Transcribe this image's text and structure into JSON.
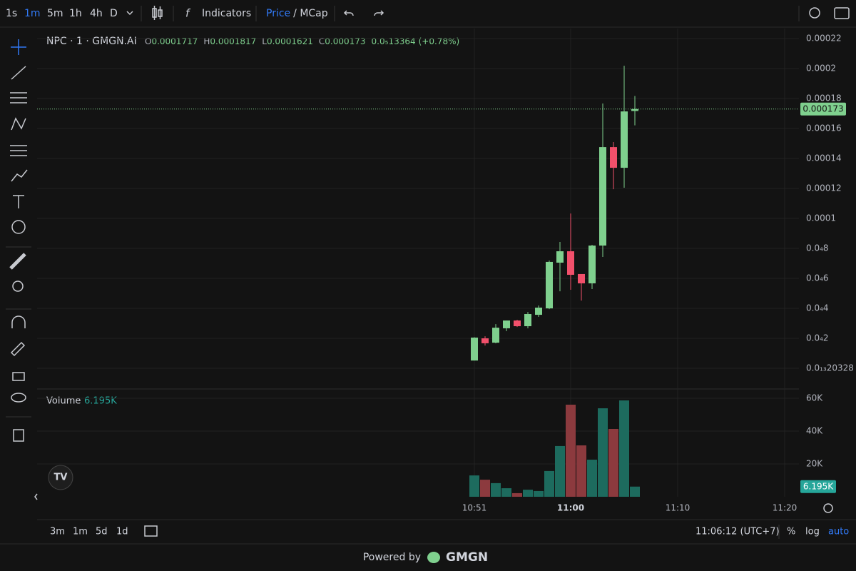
{
  "toolbar": {
    "intervals": [
      "1s",
      "1m",
      "5m",
      "1h",
      "4h",
      "D"
    ],
    "active_interval": 1,
    "indicators": "Indicators",
    "price": "Price",
    "mcap": "/ MCap"
  },
  "chart_data": {
    "type": "candlestick",
    "title": "NPC · 1 · GMGN.AI",
    "ohlc_labels": [
      "O",
      "H",
      "L",
      "C"
    ],
    "change": {
      "value": 1.3364e-06,
      "label": "0.0₅13364"
    },
    "change_pct": {
      "value": 0.78,
      "label": "(+0.78%)"
    },
    "up_color": "#7fd08e",
    "down_color": "#f2506b",
    "open": [
      5.2e-06,
      2e-05,
      1.71e-05,
      2.67e-05,
      3.19e-05,
      2.81e-05,
      3.57e-05,
      4e-05,
      7.05e-05,
      7.81e-05,
      6.29e-05,
      5.67e-05,
      8.19e-05,
      0.0001476,
      0.0001338,
      0.0001717
    ],
    "high": [
      2.07e-05,
      2.14e-05,
      2.95e-05,
      3.19e-05,
      3.24e-05,
      3.76e-05,
      4.19e-05,
      7.19e-05,
      8.43e-05,
      0.0001033,
      6.29e-05,
      8.24e-05,
      0.0001767,
      0.000151,
      0.0002019,
      0.0001817
    ],
    "low": [
      5.2e-06,
      1.52e-05,
      1.67e-05,
      2.48e-05,
      2.76e-05,
      2.67e-05,
      3.43e-05,
      3.95e-05,
      5.14e-05,
      5.24e-05,
      4.52e-05,
      5.29e-05,
      7.43e-05,
      0.0001195,
      0.0001205,
      0.0001621
    ],
    "close": [
      2.05e-05,
      1.67e-05,
      2.71e-05,
      3.19e-05,
      2.81e-05,
      3.62e-05,
      4.05e-05,
      7.1e-05,
      7.81e-05,
      6.24e-05,
      5.67e-05,
      8.19e-05,
      0.0001476,
      0.0001338,
      0.0001714,
      0.000173
    ],
    "ylim": [
      -1.38e-05,
      0.0002267
    ],
    "yticks": [
      0.00022,
      0.0002,
      0.00018,
      0.00016,
      0.00014,
      0.00012,
      0.0001,
      {
        "value": 8e-05,
        "label": "0.0₄8"
      },
      {
        "value": 6e-05,
        "label": "0.0₄6"
      },
      {
        "value": 4e-05,
        "label": "0.0₄4"
      },
      {
        "value": 2e-05,
        "label": "0.0₄2"
      },
      {
        "value": 2.0328e-14,
        "label": "0.0₁₃20328"
      }
    ],
    "xticks": [
      "10:51",
      "11:00",
      "11:10",
      "11:20"
    ],
    "grid": true,
    "volume": {
      "title": "Volume",
      "legend_value": {
        "value": 6195,
        "label": "6.195K"
      },
      "up_color": "#1d6b5e",
      "down_color": "#8c3a3e",
      "values": [
        13000,
        10400,
        8300,
        5200,
        2200,
        4300,
        3500,
        15700,
        30900,
        56100,
        31300,
        22600,
        53900,
        41300,
        58700,
        6195
      ],
      "ylim": [
        0,
        65652
      ],
      "yticks": [
        {
          "value": 20000,
          "label": "20K"
        },
        {
          "value": 40000,
          "label": "40K"
        },
        {
          "value": 60000,
          "label": "60K"
        }
      ]
    }
  },
  "bottom": {
    "ranges": [
      "3m",
      "1m",
      "5d",
      "1d"
    ],
    "clock": "11:06:12 (UTC+7)",
    "percent": "%",
    "log": "log",
    "auto": "auto"
  },
  "footer": {
    "powered": "Powered by",
    "brand": "GMGN"
  }
}
